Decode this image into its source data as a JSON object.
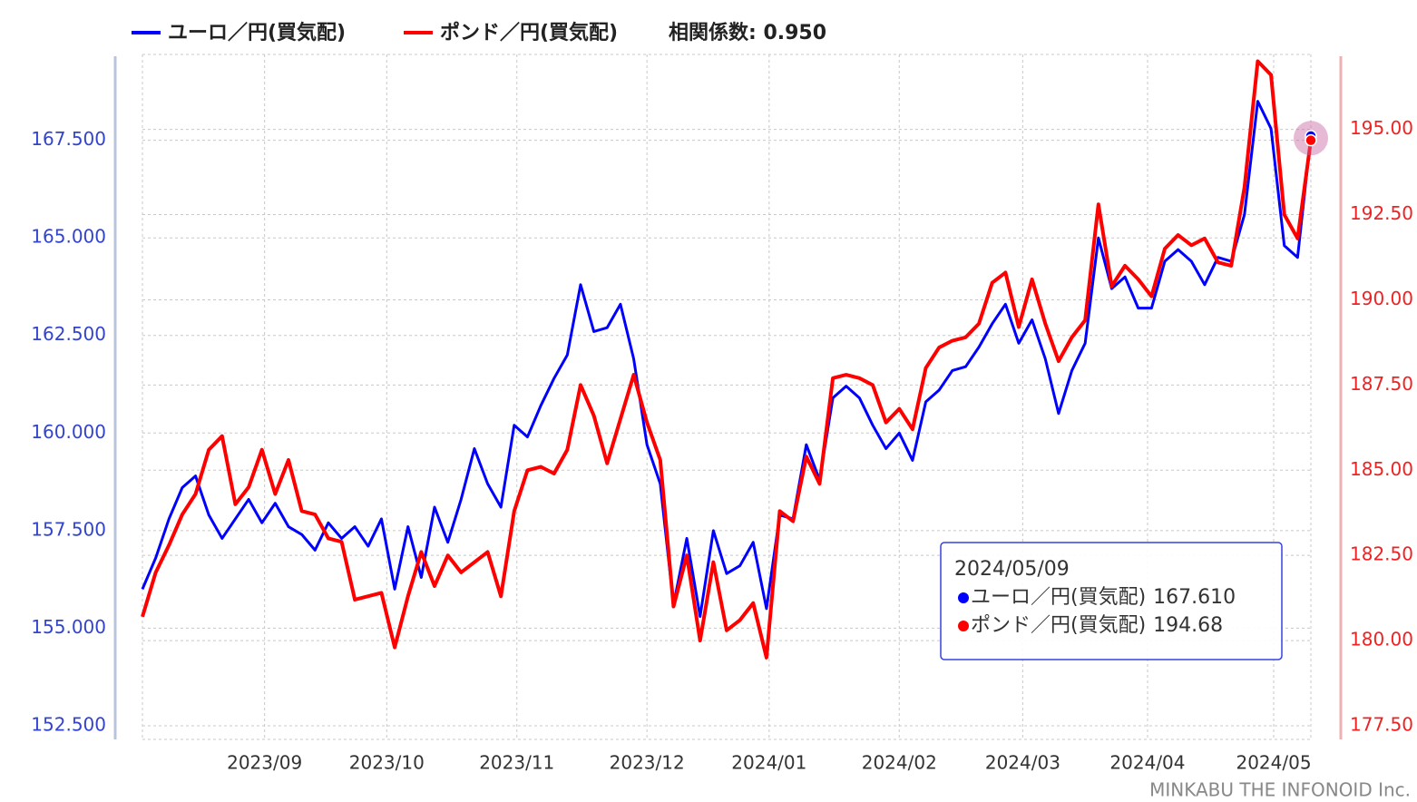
{
  "chart_data": {
    "type": "line",
    "annotation": "相関係数: 0.950",
    "credit": "MINKABU THE INFONOID Inc.",
    "xlim": [
      0,
      88
    ],
    "xticks": [
      {
        "value": 9.2,
        "label": "2023/09"
      },
      {
        "value": 18.4,
        "label": "2023/10"
      },
      {
        "value": 28.2,
        "label": "2023/11"
      },
      {
        "value": 38.0,
        "label": "2023/12"
      },
      {
        "value": 47.2,
        "label": "2024/01"
      },
      {
        "value": 57.0,
        "label": "2024/02"
      },
      {
        "value": 66.3,
        "label": "2024/03"
      },
      {
        "value": 75.7,
        "label": "2024/04"
      },
      {
        "value": 85.2,
        "label": "2024/05"
      }
    ],
    "ylim": [
      152.15,
      169.7
    ],
    "yticks": [
      {
        "value": 152.5,
        "label": "152.500"
      },
      {
        "value": 155,
        "label": "155.000"
      },
      {
        "value": 157.5,
        "label": "157.500"
      },
      {
        "value": 160,
        "label": "160.000"
      },
      {
        "value": 162.5,
        "label": "162.500"
      },
      {
        "value": 165,
        "label": "165.000"
      },
      {
        "value": 167.5,
        "label": "167.500"
      }
    ],
    "y2lim": [
      177.1,
      197.2
    ],
    "y2ticks": [
      {
        "value": 177.5,
        "label": "177.50"
      },
      {
        "value": 180,
        "label": "180.00"
      },
      {
        "value": 182.5,
        "label": "182.50"
      },
      {
        "value": 185,
        "label": "185.00"
      },
      {
        "value": 187.5,
        "label": "187.50"
      },
      {
        "value": 190,
        "label": "190.00"
      },
      {
        "value": 192.5,
        "label": "192.50"
      },
      {
        "value": 195,
        "label": "195.00"
      }
    ],
    "grid": true,
    "series": [
      {
        "name": "ユーロ／円(買気配)",
        "color": "#0000ff",
        "axis": "y",
        "values": [
          156.0,
          156.8,
          157.8,
          158.6,
          158.9,
          157.9,
          157.3,
          157.8,
          158.3,
          157.7,
          158.2,
          157.6,
          157.4,
          157.0,
          157.7,
          157.3,
          157.6,
          157.1,
          157.8,
          156.0,
          157.6,
          156.3,
          158.1,
          157.2,
          158.3,
          159.6,
          158.7,
          158.1,
          160.2,
          159.9,
          160.7,
          161.4,
          162.0,
          163.8,
          162.6,
          162.7,
          163.3,
          161.9,
          159.7,
          158.7,
          155.6,
          157.3,
          155.3,
          157.5,
          156.4,
          156.6,
          157.2,
          155.5,
          157.9,
          157.8,
          159.7,
          158.8,
          160.9,
          161.2,
          160.9,
          160.2,
          159.6,
          160.0,
          159.3,
          160.8,
          161.1,
          161.6,
          161.7,
          162.2,
          162.8,
          163.3,
          162.3,
          162.9,
          161.9,
          160.5,
          161.6,
          162.3,
          165.0,
          163.7,
          164.0,
          163.2,
          163.2,
          164.4,
          164.7,
          164.4,
          163.8,
          164.5,
          164.4,
          165.6,
          168.5,
          167.8,
          164.8,
          164.5,
          167.61
        ]
      },
      {
        "name": "ポンド／円(買気配)",
        "color": "#ff0000",
        "axis": "y2",
        "values": [
          180.7,
          182.0,
          182.8,
          183.7,
          184.3,
          185.6,
          186.0,
          184.0,
          184.5,
          185.6,
          184.3,
          185.3,
          183.8,
          183.7,
          183.0,
          182.9,
          181.2,
          181.3,
          181.4,
          179.8,
          181.3,
          182.6,
          181.6,
          182.5,
          182.0,
          182.3,
          182.6,
          181.3,
          183.8,
          185.0,
          185.1,
          184.9,
          185.6,
          187.5,
          186.6,
          185.2,
          186.5,
          187.8,
          186.4,
          185.3,
          181.0,
          182.5,
          180.0,
          182.3,
          180.3,
          180.6,
          181.1,
          179.5,
          183.8,
          183.5,
          185.4,
          184.6,
          187.7,
          187.8,
          187.7,
          187.5,
          186.4,
          186.8,
          186.2,
          188.0,
          188.6,
          188.8,
          188.9,
          189.3,
          190.5,
          190.8,
          189.2,
          190.6,
          189.3,
          188.2,
          188.9,
          189.4,
          192.8,
          190.4,
          191.0,
          190.6,
          190.1,
          191.5,
          191.9,
          191.6,
          191.8,
          191.1,
          191.0,
          193.3,
          197.0,
          196.6,
          192.5,
          191.8,
          194.68
        ]
      }
    ],
    "tooltip": {
      "title": "2024/05/09",
      "labels": [
        "167.610",
        "194.68"
      ]
    }
  }
}
